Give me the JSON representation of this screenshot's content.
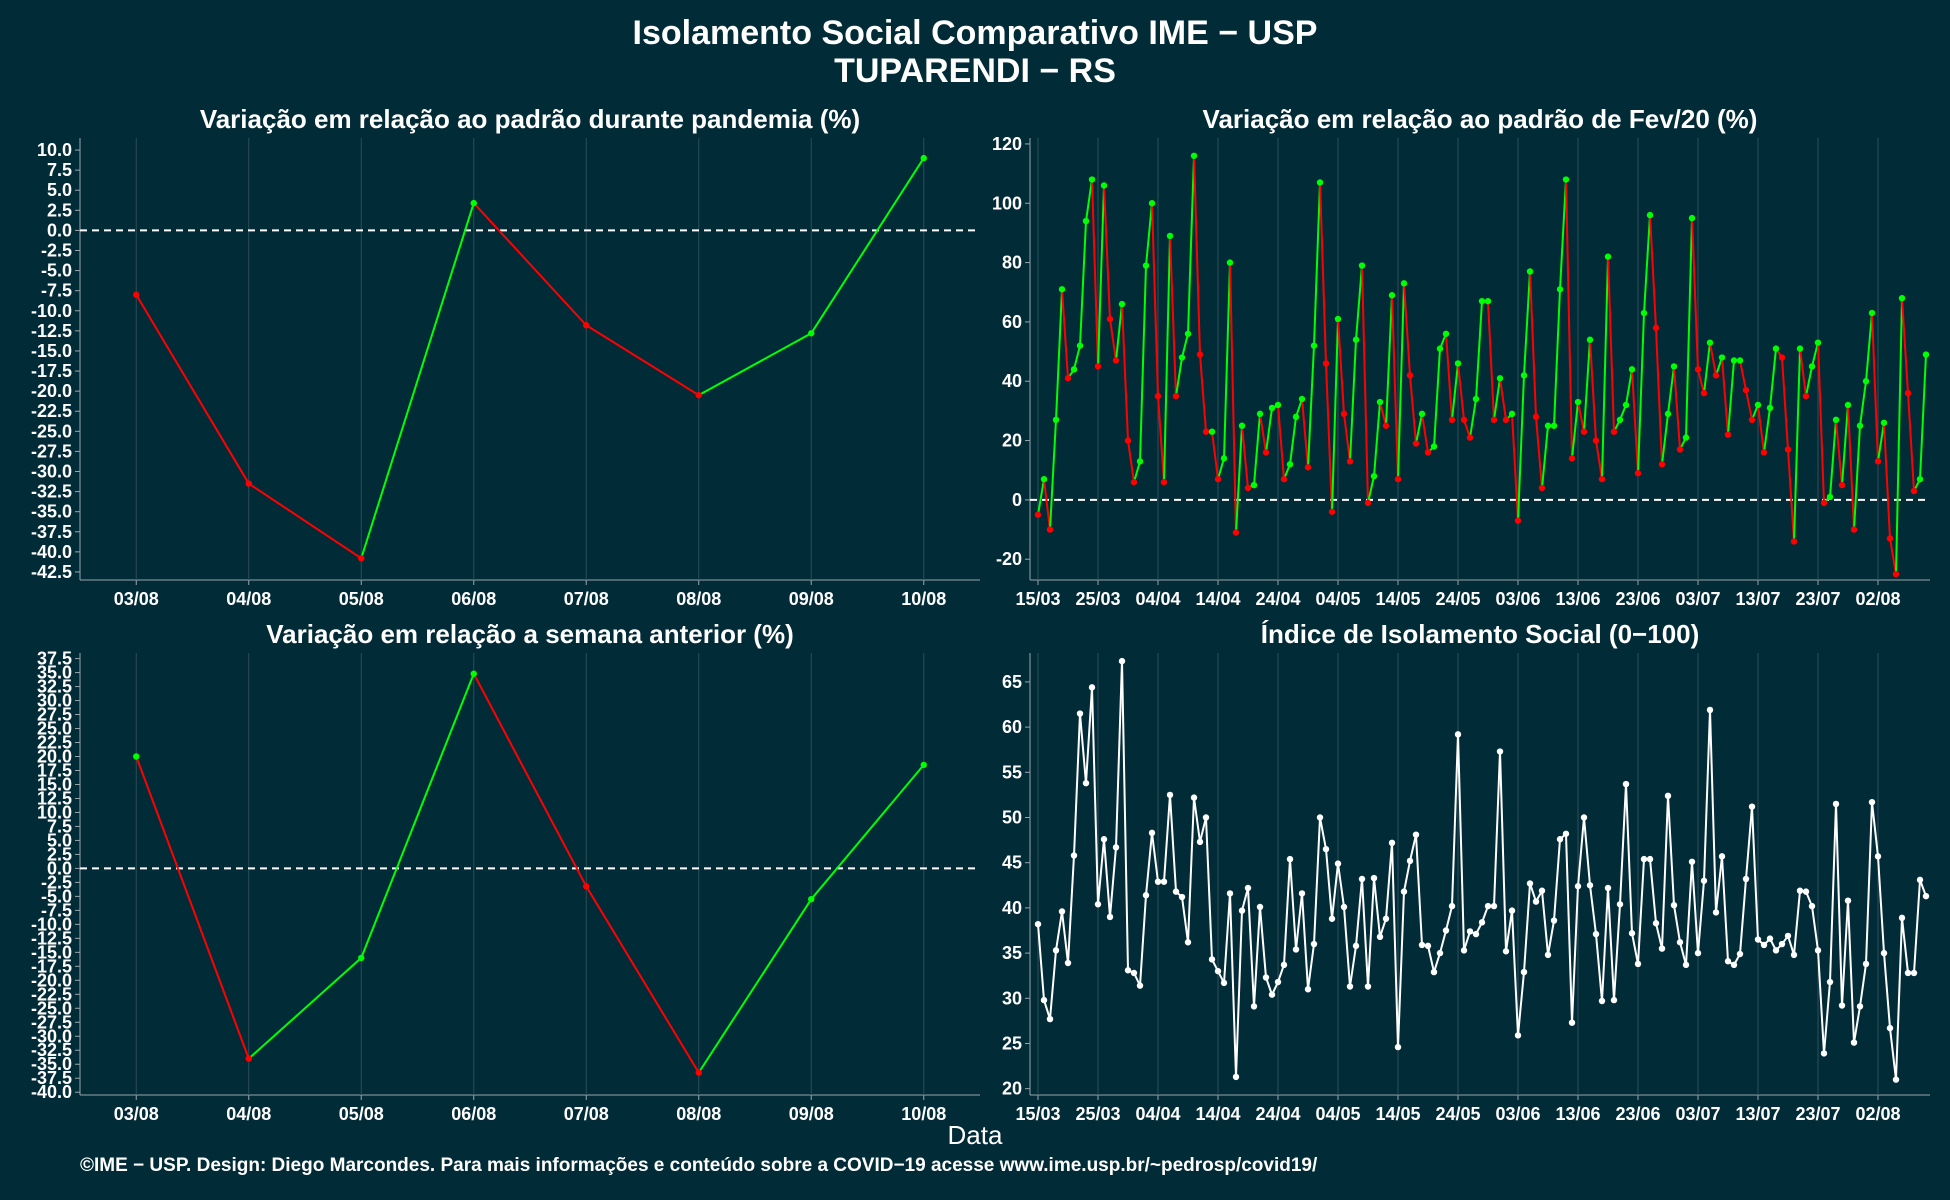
{
  "title_line1": "Isolamento Social Comparativo IME − USP",
  "title_line2": "TUPARENDI − RS",
  "x_caption": "Data",
  "footer": "©IME − USP. Design: Diego Marcondes. Para mais informações e conteúdo sobre a COVID−19 acesse www.ime.usp.br/~pedrosp/covid19/",
  "colors": {
    "background": "#022b38",
    "positive": "#00ff00",
    "negative": "#ff0000",
    "index": "#ffffff",
    "zero_line": "#ffffff"
  },
  "chart_data": [
    {
      "id": "panel1",
      "type": "line",
      "title": "Variação em relação ao padrão durante pandemia (%)",
      "categories": [
        "03/08",
        "04/08",
        "05/08",
        "06/08",
        "07/08",
        "08/08",
        "09/08",
        "10/08"
      ],
      "values": [
        -8.0,
        -31.5,
        -40.8,
        3.4,
        -11.8,
        -20.5,
        -12.8,
        9.0
      ],
      "ylim": [
        -43.5,
        11.5
      ],
      "yticks": [
        10.0,
        7.5,
        5.0,
        2.5,
        0.0,
        -2.5,
        -5.0,
        -7.5,
        -10.0,
        -12.5,
        -15.0,
        -17.5,
        -20.0,
        -22.5,
        -25.0,
        -27.5,
        -30.0,
        -32.5,
        -35.0,
        -37.5,
        -40.0,
        -42.5
      ],
      "zero_line": true,
      "grid": true
    },
    {
      "id": "panel2",
      "type": "line",
      "title": "Variação em relação ao padrão de Fev/20 (%)",
      "x_start": "15/03",
      "x_end": "10/08",
      "xticks": [
        "15/03",
        "25/03",
        "04/04",
        "14/04",
        "24/04",
        "04/05",
        "14/05",
        "24/05",
        "03/06",
        "13/06",
        "23/06",
        "03/07",
        "13/07",
        "23/07",
        "02/08"
      ],
      "yticks": [
        120,
        100,
        80,
        60,
        40,
        20,
        0,
        -20
      ],
      "ylim": [
        -27,
        122
      ],
      "zero_line": true,
      "grid": true,
      "values": [
        -5,
        7,
        -10,
        27,
        71,
        41,
        44,
        52,
        94,
        108,
        45,
        106,
        61,
        47,
        66,
        20,
        6,
        13,
        79,
        100,
        35,
        6,
        89,
        35,
        48,
        56,
        116,
        49,
        23,
        23,
        7,
        14,
        80,
        -11,
        25,
        4,
        5,
        29,
        16,
        31,
        32,
        7,
        12,
        28,
        34,
        11,
        52,
        107,
        46,
        -4,
        61,
        29,
        13,
        54,
        79,
        -1,
        8,
        33,
        25,
        69,
        7,
        73,
        42,
        19,
        29,
        16,
        18,
        51,
        56,
        27,
        46,
        27,
        21,
        34,
        67,
        67,
        27,
        41,
        27,
        29,
        -7,
        42,
        77,
        28,
        4,
        25,
        25,
        71,
        108,
        14,
        33,
        23,
        54,
        20,
        7,
        82,
        23,
        27,
        32,
        44,
        9,
        63,
        96,
        58,
        12,
        29,
        45,
        17,
        21,
        95,
        44,
        36,
        53,
        42,
        48,
        22,
        47,
        47,
        37,
        27,
        32,
        16,
        31,
        51,
        48,
        17,
        -14,
        51,
        35,
        45,
        53,
        -1,
        1,
        27,
        5,
        32,
        -10,
        25,
        40,
        63,
        13,
        26,
        -13,
        -25,
        68,
        36,
        3,
        7,
        49
      ]
    },
    {
      "id": "panel3",
      "type": "line",
      "title": "Variação em relação a semana anterior (%)",
      "categories": [
        "03/08",
        "04/08",
        "05/08",
        "06/08",
        "07/08",
        "08/08",
        "09/08",
        "10/08"
      ],
      "values": [
        20.0,
        -34.0,
        -16.0,
        34.8,
        -3.2,
        -36.5,
        -5.5,
        18.5
      ],
      "ylim": [
        -40.5,
        38.5
      ],
      "yticks": [
        37.5,
        35.0,
        32.5,
        30.0,
        27.5,
        25.0,
        22.5,
        20.0,
        17.5,
        15.0,
        12.5,
        10.0,
        7.5,
        5.0,
        2.5,
        0.0,
        -2.5,
        -5.0,
        -7.5,
        -10.0,
        -12.5,
        -15.0,
        -17.5,
        -20.0,
        -22.5,
        -25.0,
        -27.5,
        -30.0,
        -32.5,
        -35.0,
        -37.5,
        -40.0
      ],
      "zero_line": true,
      "grid": true
    },
    {
      "id": "panel4",
      "type": "line",
      "title": "Índice de Isolamento Social (0−100)",
      "x_start": "15/03",
      "x_end": "10/08",
      "xticks": [
        "15/03",
        "25/03",
        "04/04",
        "14/04",
        "24/04",
        "04/05",
        "14/05",
        "24/05",
        "03/06",
        "13/06",
        "23/06",
        "03/07",
        "13/07",
        "23/07",
        "02/08"
      ],
      "yticks": [
        65,
        60,
        55,
        50,
        45,
        40,
        35,
        30,
        25,
        20
      ],
      "ylim": [
        19.3,
        68.2
      ],
      "grid": true,
      "values": [
        38.2,
        29.8,
        27.7,
        35.3,
        39.6,
        33.9,
        45.8,
        61.5,
        53.8,
        64.4,
        40.4,
        47.6,
        39.0,
        46.7,
        67.3,
        33.1,
        32.8,
        31.4,
        41.4,
        48.3,
        42.9,
        42.9,
        52.5,
        41.8,
        41.2,
        36.2,
        52.2,
        47.3,
        50.0,
        34.3,
        33.0,
        31.7,
        41.6,
        21.3,
        39.7,
        42.2,
        29.1,
        40.1,
        32.3,
        30.4,
        31.8,
        33.7,
        45.4,
        35.4,
        41.6,
        31.0,
        36.0,
        50.0,
        46.5,
        38.8,
        44.9,
        40.1,
        31.3,
        35.8,
        43.2,
        31.3,
        43.3,
        36.8,
        38.8,
        47.2,
        24.6,
        41.8,
        45.2,
        48.1,
        35.9,
        35.8,
        32.9,
        35.0,
        37.5,
        40.2,
        59.2,
        35.3,
        37.4,
        37.1,
        38.4,
        40.2,
        40.2,
        57.3,
        35.2,
        39.7,
        25.9,
        32.9,
        42.7,
        40.7,
        41.9,
        34.8,
        38.6,
        47.6,
        48.2,
        27.3,
        42.4,
        50.0,
        42.5,
        37.1,
        29.7,
        42.2,
        29.8,
        40.4,
        53.7,
        37.2,
        33.8,
        45.4,
        45.4,
        38.3,
        35.5,
        52.4,
        40.3,
        36.2,
        33.7,
        45.1,
        35.0,
        43.0,
        61.9,
        39.5,
        45.7,
        34.1,
        33.7,
        34.9,
        43.2,
        51.2,
        36.5,
        35.9,
        36.6,
        35.3,
        36.0,
        36.9,
        34.8,
        41.9,
        41.8,
        40.2,
        35.3,
        23.9,
        31.8,
        51.5,
        29.2,
        40.8,
        25.1,
        29.1,
        33.8,
        51.7,
        45.7,
        35.0,
        26.7,
        21.0,
        38.9,
        32.8,
        32.8,
        43.1,
        41.3
      ]
    }
  ]
}
